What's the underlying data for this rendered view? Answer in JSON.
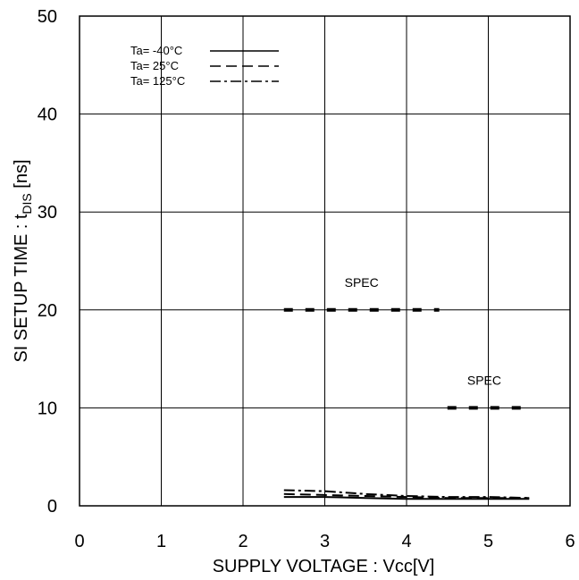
{
  "chart_data": {
    "type": "line",
    "title": "",
    "xlabel": "SUPPLY VOLTAGE : Vcc[V]",
    "ylabel_main": "SI SETUP TIME : t",
    "ylabel_sub": "DIS",
    "ylabel_unit": " [ns]",
    "xlim": [
      0,
      6
    ],
    "ylim": [
      0,
      50
    ],
    "xticks": [
      0,
      1,
      2,
      3,
      4,
      5,
      6
    ],
    "yticks": [
      0,
      10,
      20,
      30,
      40,
      50
    ],
    "x_tick_labels": [
      "0",
      "1",
      "2",
      "3",
      "4",
      "5",
      "6"
    ],
    "y_tick_labels": [
      "0",
      "10",
      "20",
      "30",
      "40",
      "50"
    ],
    "grid": true,
    "legend_position": "top-left",
    "series": [
      {
        "name": "Ta= -40°C",
        "dash": "solid",
        "x": [
          2.5,
          3.0,
          3.5,
          4.0,
          4.5,
          5.0,
          5.5
        ],
        "y": [
          0.9,
          0.9,
          0.8,
          0.7,
          0.7,
          0.7,
          0.7
        ]
      },
      {
        "name": "Ta=  25°C",
        "dash": "dashed",
        "x": [
          2.5,
          3.0,
          3.5,
          4.0,
          4.5,
          5.0,
          5.5
        ],
        "y": [
          1.2,
          1.1,
          1.0,
          0.9,
          0.8,
          0.8,
          0.8
        ]
      },
      {
        "name": "Ta= 125°C",
        "dash": "dashdot",
        "x": [
          2.5,
          3.0,
          3.5,
          4.0,
          4.5,
          5.0,
          5.5
        ],
        "y": [
          1.6,
          1.5,
          1.2,
          1.0,
          0.9,
          0.9,
          0.8
        ]
      }
    ],
    "spec_lines": [
      {
        "label": "SPEC",
        "y": 20,
        "x_start": 2.5,
        "x_end": 4.4
      },
      {
        "label": "SPEC",
        "y": 10,
        "x_start": 4.5,
        "x_end": 5.4
      }
    ]
  }
}
